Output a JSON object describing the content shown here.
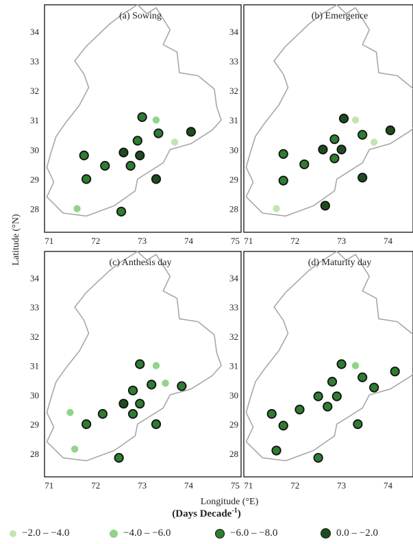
{
  "colors": {
    "c1": "#c3e4b2",
    "c2": "#92d38a",
    "c3": "#2f7c32",
    "c4": "#1d4d1f",
    "outline": "#a7a7a7",
    "frame": "#222222"
  },
  "chart_data": {
    "type": "scatter",
    "map_kind": "province-outline-dot-map",
    "xlabel": "Longitude (°E)",
    "ylabel": "Latitude (°N)",
    "xticks": [
      71,
      72,
      73,
      74,
      75
    ],
    "yticks": [
      28,
      29,
      30,
      31,
      32,
      33,
      34
    ],
    "xlim": [
      70.9,
      75.2
    ],
    "ylim": [
      27.2,
      34.9
    ],
    "units_label": "(Days Decade",
    "units_sup": "-1",
    "units_close": ")",
    "legend": [
      {
        "label": "−2.0 – −4.0",
        "color_key": "c1"
      },
      {
        "label": "−4.0 – −6.0",
        "color_key": "c2"
      },
      {
        "label": "−6.0 – −8.0",
        "color_key": "c3"
      },
      {
        "label": "0.0 – −2.0",
        "color_key": "c4"
      }
    ],
    "outline": [
      [
        72.55,
        34.55
      ],
      [
        72.9,
        34.9
      ],
      [
        73.1,
        34.6
      ],
      [
        73.3,
        34.8
      ],
      [
        73.6,
        34.05
      ],
      [
        73.45,
        33.55
      ],
      [
        73.75,
        33.3
      ],
      [
        73.8,
        32.6
      ],
      [
        74.2,
        32.5
      ],
      [
        74.55,
        32.05
      ],
      [
        74.6,
        31.45
      ],
      [
        74.7,
        31.0
      ],
      [
        74.5,
        30.65
      ],
      [
        74.05,
        30.2
      ],
      [
        73.6,
        30.0
      ],
      [
        73.45,
        29.55
      ],
      [
        72.9,
        29.0
      ],
      [
        72.85,
        28.6
      ],
      [
        72.4,
        28.1
      ],
      [
        71.8,
        27.75
      ],
      [
        71.3,
        27.85
      ],
      [
        70.95,
        28.4
      ],
      [
        71.1,
        28.9
      ],
      [
        70.95,
        29.4
      ],
      [
        71.05,
        29.95
      ],
      [
        71.15,
        30.45
      ],
      [
        71.35,
        30.9
      ],
      [
        71.65,
        31.5
      ],
      [
        71.85,
        32.1
      ],
      [
        71.75,
        32.55
      ],
      [
        71.55,
        33.0
      ],
      [
        71.8,
        33.5
      ],
      [
        72.1,
        33.95
      ],
      [
        72.3,
        34.25
      ]
    ],
    "panels": [
      {
        "title": "(a)  Sowing",
        "points": [
          {
            "x": 71.75,
            "y": 29.8,
            "c": "c3"
          },
          {
            "x": 71.8,
            "y": 29.0,
            "c": "c3"
          },
          {
            "x": 71.6,
            "y": 28.0,
            "c": "c2"
          },
          {
            "x": 72.2,
            "y": 29.45,
            "c": "c3"
          },
          {
            "x": 72.6,
            "y": 29.9,
            "c": "c4"
          },
          {
            "x": 72.75,
            "y": 29.45,
            "c": "c3"
          },
          {
            "x": 72.95,
            "y": 29.8,
            "c": "c4"
          },
          {
            "x": 72.9,
            "y": 30.3,
            "c": "c3"
          },
          {
            "x": 73.0,
            "y": 31.1,
            "c": "c3"
          },
          {
            "x": 73.3,
            "y": 31.0,
            "c": "c2"
          },
          {
            "x": 73.35,
            "y": 30.55,
            "c": "c3"
          },
          {
            "x": 73.7,
            "y": 30.25,
            "c": "c1"
          },
          {
            "x": 74.05,
            "y": 30.6,
            "c": "c4"
          },
          {
            "x": 73.3,
            "y": 29.0,
            "c": "c4"
          },
          {
            "x": 72.55,
            "y": 27.9,
            "c": "c3"
          }
        ]
      },
      {
        "title": "(b) Emergence",
        "points": [
          {
            "x": 71.75,
            "y": 29.85,
            "c": "c3"
          },
          {
            "x": 71.75,
            "y": 28.95,
            "c": "c3"
          },
          {
            "x": 71.6,
            "y": 28.0,
            "c": "c1"
          },
          {
            "x": 72.2,
            "y": 29.5,
            "c": "c3"
          },
          {
            "x": 72.6,
            "y": 30.0,
            "c": "c4"
          },
          {
            "x": 72.85,
            "y": 29.7,
            "c": "c3"
          },
          {
            "x": 73.0,
            "y": 30.0,
            "c": "c4"
          },
          {
            "x": 72.85,
            "y": 30.35,
            "c": "c3"
          },
          {
            "x": 73.05,
            "y": 31.05,
            "c": "c4"
          },
          {
            "x": 73.3,
            "y": 31.0,
            "c": "c1"
          },
          {
            "x": 73.45,
            "y": 30.5,
            "c": "c3"
          },
          {
            "x": 73.7,
            "y": 30.25,
            "c": "c1"
          },
          {
            "x": 74.05,
            "y": 30.65,
            "c": "c4"
          },
          {
            "x": 73.45,
            "y": 29.05,
            "c": "c4"
          },
          {
            "x": 72.65,
            "y": 28.1,
            "c": "c4"
          }
        ]
      },
      {
        "title": "(c) Anthesis day",
        "points": [
          {
            "x": 71.45,
            "y": 29.4,
            "c": "c2"
          },
          {
            "x": 71.8,
            "y": 29.0,
            "c": "c3"
          },
          {
            "x": 71.55,
            "y": 28.15,
            "c": "c2"
          },
          {
            "x": 72.15,
            "y": 29.35,
            "c": "c3"
          },
          {
            "x": 72.6,
            "y": 29.7,
            "c": "c4"
          },
          {
            "x": 72.8,
            "y": 29.35,
            "c": "c3"
          },
          {
            "x": 72.95,
            "y": 29.7,
            "c": "c3"
          },
          {
            "x": 72.8,
            "y": 30.15,
            "c": "c3"
          },
          {
            "x": 72.95,
            "y": 31.05,
            "c": "c3"
          },
          {
            "x": 73.3,
            "y": 31.0,
            "c": "c2"
          },
          {
            "x": 73.2,
            "y": 30.35,
            "c": "c3"
          },
          {
            "x": 73.5,
            "y": 30.4,
            "c": "c2"
          },
          {
            "x": 73.85,
            "y": 30.3,
            "c": "c3"
          },
          {
            "x": 73.3,
            "y": 29.0,
            "c": "c3"
          },
          {
            "x": 72.5,
            "y": 27.85,
            "c": "c3"
          }
        ]
      },
      {
        "title": "(d)  Maturity day",
        "points": [
          {
            "x": 71.5,
            "y": 29.35,
            "c": "c3"
          },
          {
            "x": 71.75,
            "y": 28.95,
            "c": "c3"
          },
          {
            "x": 71.6,
            "y": 28.1,
            "c": "c3"
          },
          {
            "x": 72.1,
            "y": 29.5,
            "c": "c3"
          },
          {
            "x": 72.5,
            "y": 29.95,
            "c": "c3"
          },
          {
            "x": 72.7,
            "y": 29.6,
            "c": "c3"
          },
          {
            "x": 72.9,
            "y": 29.95,
            "c": "c3"
          },
          {
            "x": 72.8,
            "y": 30.45,
            "c": "c3"
          },
          {
            "x": 73.0,
            "y": 31.05,
            "c": "c3"
          },
          {
            "x": 73.3,
            "y": 31.0,
            "c": "c2"
          },
          {
            "x": 73.45,
            "y": 30.6,
            "c": "c3"
          },
          {
            "x": 73.7,
            "y": 30.25,
            "c": "c3"
          },
          {
            "x": 74.15,
            "y": 30.8,
            "c": "c3"
          },
          {
            "x": 73.35,
            "y": 29.0,
            "c": "c3"
          },
          {
            "x": 72.5,
            "y": 27.85,
            "c": "c3"
          }
        ]
      }
    ]
  }
}
